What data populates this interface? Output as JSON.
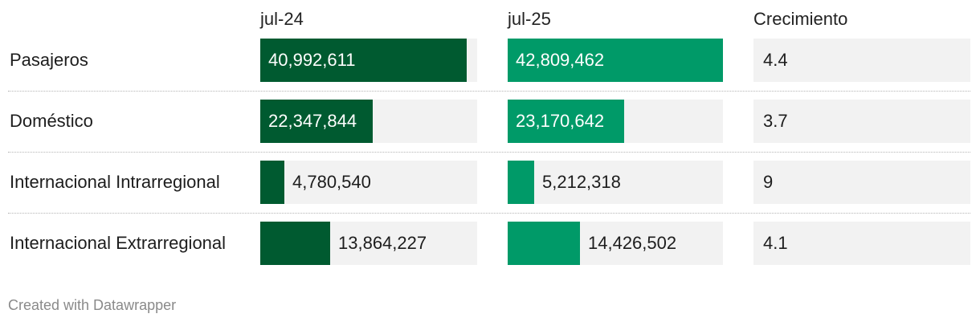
{
  "colors": {
    "jul24_bar": "#005a30",
    "jul25_bar": "#009a68",
    "track": "#f2f2f2"
  },
  "chart_data": {
    "type": "table",
    "columns": [
      "jul-24",
      "jul-25",
      "Crecimiento"
    ],
    "rows": [
      {
        "label": "Pasajeros",
        "jul24": 40992611,
        "jul24_text": "40,992,611",
        "jul25": 42809462,
        "jul25_text": "42,809,462",
        "growth": "4.4"
      },
      {
        "label": "Doméstico",
        "jul24": 22347844,
        "jul24_text": "22,347,844",
        "jul25": 23170642,
        "jul25_text": "23,170,642",
        "growth": "3.7"
      },
      {
        "label": "Internacional Intrarregional",
        "jul24": 4780540,
        "jul24_text": "4,780,540",
        "jul25": 5212318,
        "jul25_text": "5,212,318",
        "growth": "9"
      },
      {
        "label": "Internacional Extrarregional",
        "jul24": 13864227,
        "jul24_text": "13,864,227",
        "jul25": 14426502,
        "jul25_text": "14,426,502",
        "growth": "4.1"
      }
    ],
    "bar_max": 42809462
  },
  "credit": "Created with Datawrapper"
}
